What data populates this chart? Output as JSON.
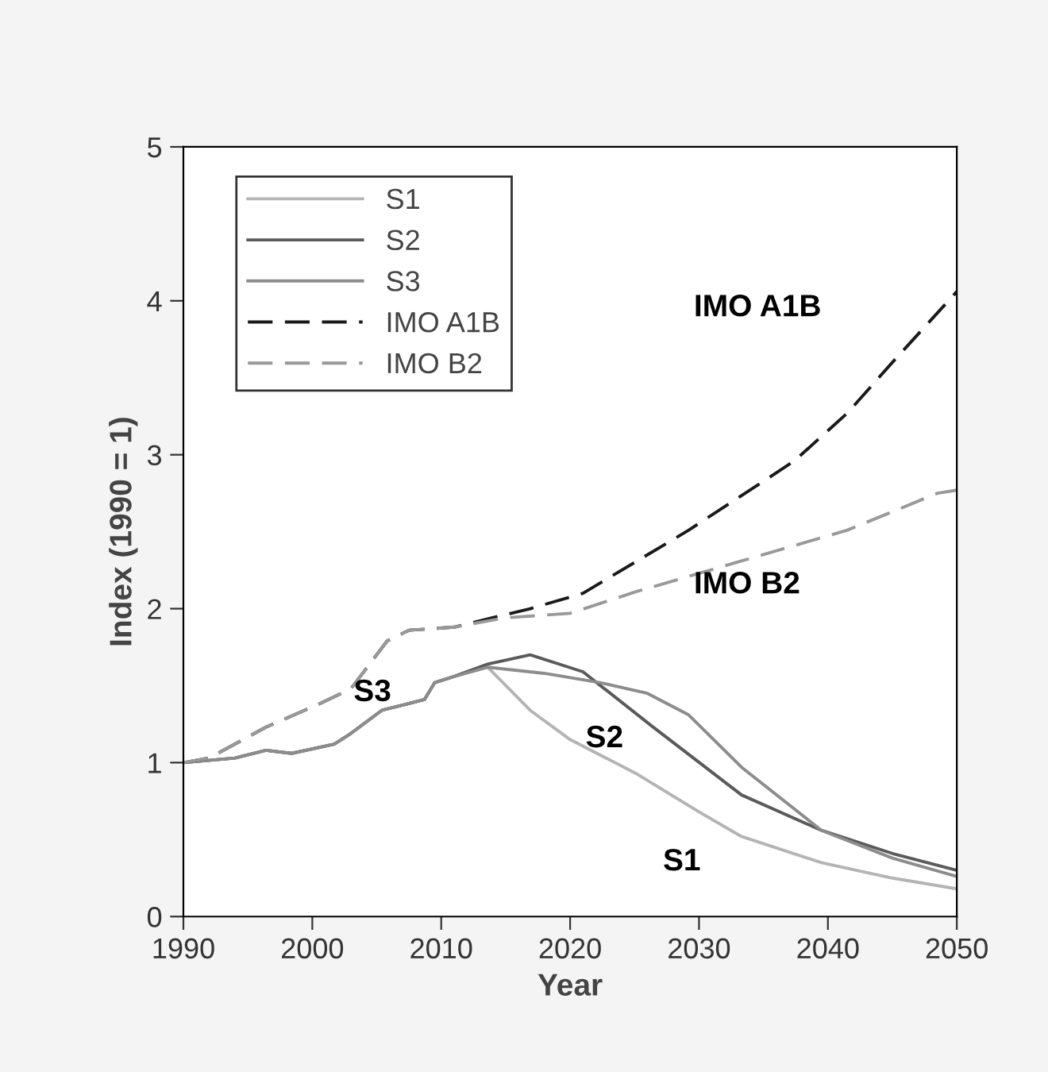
{
  "chart_data": {
    "type": "line",
    "xlabel": "Year",
    "ylabel": "Index (1990 = 1)",
    "xlim": [
      1990,
      2050
    ],
    "xticks": [
      1990,
      2000,
      2010,
      2020,
      2030,
      2040,
      2050
    ],
    "ylim": [
      0,
      5
    ],
    "yticks": [
      0,
      1,
      2,
      3,
      4,
      5
    ],
    "grid": false,
    "legend": "top left",
    "marker": "none",
    "series": [
      {
        "name": "S1",
        "color": "#b4b4b4",
        "line_style": "solid",
        "x": [
          1990,
          1994,
          1996.4,
          1998.4,
          2001.7,
          2003,
          2005.4,
          2008.7,
          2009.5,
          2011,
          2013.6,
          2016.9,
          2020,
          2025.1,
          2030,
          2033.3,
          2039.5,
          2045,
          2050
        ],
        "values": [
          1.0,
          1.03,
          1.08,
          1.06,
          1.12,
          1.19,
          1.34,
          1.41,
          1.52,
          1.56,
          1.62,
          1.34,
          1.15,
          0.93,
          0.68,
          0.52,
          0.35,
          0.25,
          0.18
        ]
      },
      {
        "name": "S2",
        "color": "#5a5a5a",
        "line_style": "solid",
        "x": [
          1990,
          1994,
          1996.4,
          1998.4,
          2001.7,
          2003,
          2005.4,
          2008.7,
          2009.5,
          2011,
          2013.6,
          2016.9,
          2021,
          2026.3,
          2033.3,
          2039.5,
          2045,
          2050
        ],
        "values": [
          1.0,
          1.03,
          1.08,
          1.06,
          1.12,
          1.19,
          1.34,
          1.41,
          1.52,
          1.56,
          1.64,
          1.7,
          1.59,
          1.24,
          0.79,
          0.56,
          0.41,
          0.3
        ]
      },
      {
        "name": "S3",
        "color": "#8c8c8c",
        "line_style": "solid",
        "x": [
          1990,
          1994,
          1996.4,
          1998.4,
          2001.7,
          2003,
          2005.4,
          2008.7,
          2009.5,
          2011,
          2013.6,
          2018,
          2022.3,
          2026,
          2029.2,
          2033.3,
          2039.5,
          2045,
          2050
        ],
        "values": [
          1.0,
          1.03,
          1.08,
          1.06,
          1.12,
          1.19,
          1.34,
          1.41,
          1.52,
          1.56,
          1.62,
          1.58,
          1.52,
          1.45,
          1.31,
          0.97,
          0.56,
          0.38,
          0.26
        ]
      },
      {
        "name": "IMO A1B",
        "color": "#1a1a1a",
        "line_style": "dashed",
        "x": [
          1990,
          1992,
          1996.4,
          2000.5,
          2003,
          2005.8,
          2007.5,
          2011,
          2014.9,
          2016.9,
          2021,
          2029.2,
          2037.4,
          2041.5,
          2045,
          2050
        ],
        "values": [
          1.0,
          1.03,
          1.23,
          1.38,
          1.48,
          1.79,
          1.86,
          1.88,
          1.96,
          2.0,
          2.1,
          2.51,
          2.96,
          3.27,
          3.6,
          4.06
        ]
      },
      {
        "name": "IMO B2",
        "color": "#999999",
        "line_style": "dashed",
        "x": [
          1990,
          1992,
          1996.4,
          2000.5,
          2003,
          2005.8,
          2007.5,
          2011,
          2014.9,
          2020,
          2025.1,
          2033.3,
          2041.5,
          2048.5,
          2050
        ],
        "values": [
          1.0,
          1.03,
          1.23,
          1.38,
          1.48,
          1.79,
          1.86,
          1.88,
          1.94,
          1.97,
          2.11,
          2.31,
          2.51,
          2.75,
          2.77
        ]
      }
    ],
    "annotations": [
      "S1",
      "S2",
      "S3",
      "IMO A1B",
      "IMO B2"
    ]
  }
}
